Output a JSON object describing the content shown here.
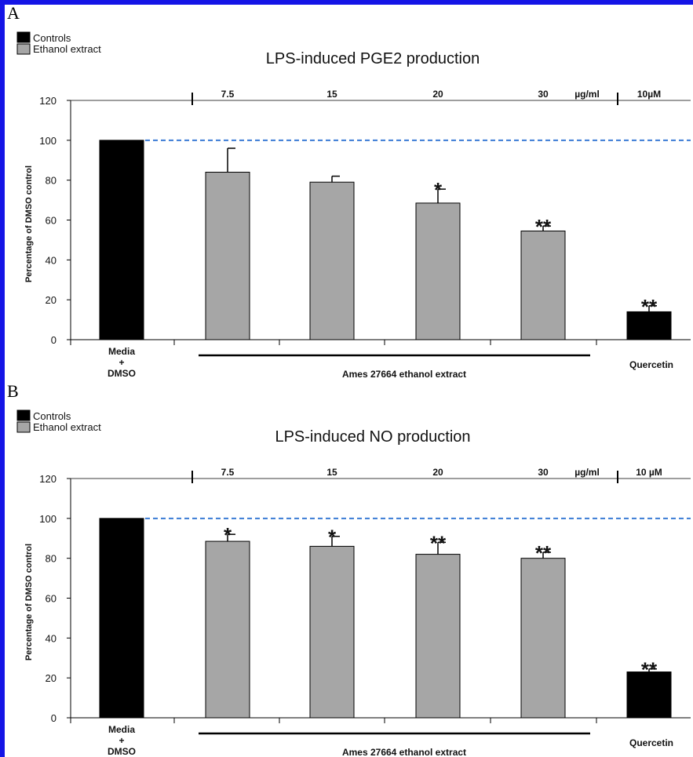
{
  "panels": [
    {
      "letter": "A",
      "legend": [
        {
          "label": "Controls",
          "color": "#000000"
        },
        {
          "label": "Ethanol extract",
          "color": "#a6a6a6"
        }
      ],
      "concentration_labels": [
        "7.5",
        "15",
        "20",
        "30",
        "µg/ml",
        "10µM"
      ],
      "category_labels": {
        "media_line1": "Media",
        "media_line2": "+",
        "media_line3": "DMSO",
        "extract_group": "Ames 27664 ethanol extract",
        "quercetin": "Quercetin"
      }
    },
    {
      "letter": "B",
      "legend": [
        {
          "label": "Controls",
          "color": "#000000"
        },
        {
          "label": "Ethanol extract",
          "color": "#a6a6a6"
        }
      ],
      "concentration_labels": [
        "7.5",
        "15",
        "20",
        "30",
        "µg/ml",
        "10 µM"
      ],
      "category_labels": {
        "media_line1": "Media",
        "media_line2": "+",
        "media_line3": "DMSO",
        "extract_group": "Ames 27664 ethanol extract",
        "quercetin": "Quercetin"
      }
    }
  ],
  "chart_data": [
    {
      "type": "bar",
      "title": "LPS-induced PGE2 production",
      "ylabel": "Percentage of DMSO control",
      "xlabel": "",
      "ylim": [
        0,
        120
      ],
      "yticks": [
        "0",
        "20",
        "40",
        "60",
        "80",
        "100",
        "120"
      ],
      "categories": [
        "Media + DMSO",
        "7.5",
        "15",
        "20",
        "30",
        "Quercetin 10µM"
      ],
      "values": [
        100,
        84,
        79,
        68.5,
        54.5,
        14
      ],
      "errors": [
        0,
        12,
        3,
        7,
        2.5,
        3
      ],
      "significance": [
        "",
        "",
        "",
        "*",
        "**",
        "**"
      ],
      "series_type": [
        "control",
        "extract",
        "extract",
        "extract",
        "extract",
        "control"
      ],
      "reference_line": 100,
      "legend_position": "top-left"
    },
    {
      "type": "bar",
      "title": "LPS-induced NO production",
      "ylabel": "Percentage of DMSO control",
      "xlabel": "",
      "ylim": [
        0,
        120
      ],
      "yticks": [
        "0",
        "20",
        "40",
        "60",
        "80",
        "100",
        "120"
      ],
      "categories": [
        "Media + DMSO",
        "7.5",
        "15",
        "20",
        "30",
        "Quercetin 10 µM"
      ],
      "values": [
        100,
        88.5,
        86,
        82,
        80,
        23
      ],
      "errors": [
        0,
        3.5,
        5,
        6,
        3,
        1.5
      ],
      "significance": [
        "",
        "*",
        "*",
        "**",
        "**",
        "**"
      ],
      "series_type": [
        "control",
        "extract",
        "extract",
        "extract",
        "extract",
        "control"
      ],
      "reference_line": 100,
      "legend_position": "top-left"
    }
  ]
}
